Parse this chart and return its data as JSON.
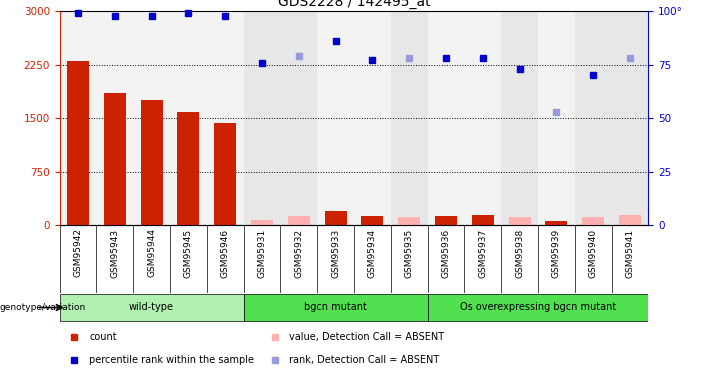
{
  "title": "GDS2228 / 142495_at",
  "samples": [
    "GSM95942",
    "GSM95943",
    "GSM95944",
    "GSM95945",
    "GSM95946",
    "GSM95931",
    "GSM95932",
    "GSM95933",
    "GSM95934",
    "GSM95935",
    "GSM95936",
    "GSM95937",
    "GSM95938",
    "GSM95939",
    "GSM95940",
    "GSM95941"
  ],
  "count_values": [
    2300,
    1850,
    1750,
    1580,
    1430,
    75,
    120,
    200,
    130,
    115,
    130,
    140,
    115,
    50,
    110,
    140
  ],
  "count_absent": [
    false,
    false,
    false,
    false,
    false,
    true,
    true,
    false,
    false,
    true,
    false,
    false,
    true,
    false,
    true,
    true
  ],
  "rank_values": [
    99,
    98,
    98,
    99,
    98,
    76,
    79,
    86,
    77,
    78,
    78,
    78,
    73,
    53,
    70,
    78
  ],
  "rank_absent": [
    false,
    false,
    false,
    false,
    false,
    false,
    true,
    false,
    false,
    true,
    false,
    false,
    false,
    true,
    false,
    true
  ],
  "groups": [
    {
      "label": "wild-type",
      "start": 0,
      "end": 5,
      "color": "#b0f0b0"
    },
    {
      "label": "bgcn mutant",
      "start": 5,
      "end": 10,
      "color": "#50e050"
    },
    {
      "label": "Os overexpressing bgcn mutant",
      "start": 10,
      "end": 16,
      "color": "#50e050"
    }
  ],
  "ylim_left": [
    0,
    3000
  ],
  "ylim_right": [
    0,
    100
  ],
  "yticks_left": [
    0,
    750,
    1500,
    2250,
    3000
  ],
  "yticks_right": [
    0,
    25,
    50,
    75,
    100
  ],
  "bar_color_present": "#cc2200",
  "bar_color_absent": "#ffb0b0",
  "dot_color_present": "#0000cc",
  "dot_color_absent": "#9999dd",
  "col_bg_present": "#e8e8e8",
  "col_bg_absent": "#d0d0d0",
  "legend_items": [
    {
      "label": "count",
      "color": "#cc2200"
    },
    {
      "label": "percentile rank within the sample",
      "color": "#0000cc"
    },
    {
      "label": "value, Detection Call = ABSENT",
      "color": "#ffb0b0"
    },
    {
      "label": "rank, Detection Call = ABSENT",
      "color": "#9999dd"
    }
  ]
}
